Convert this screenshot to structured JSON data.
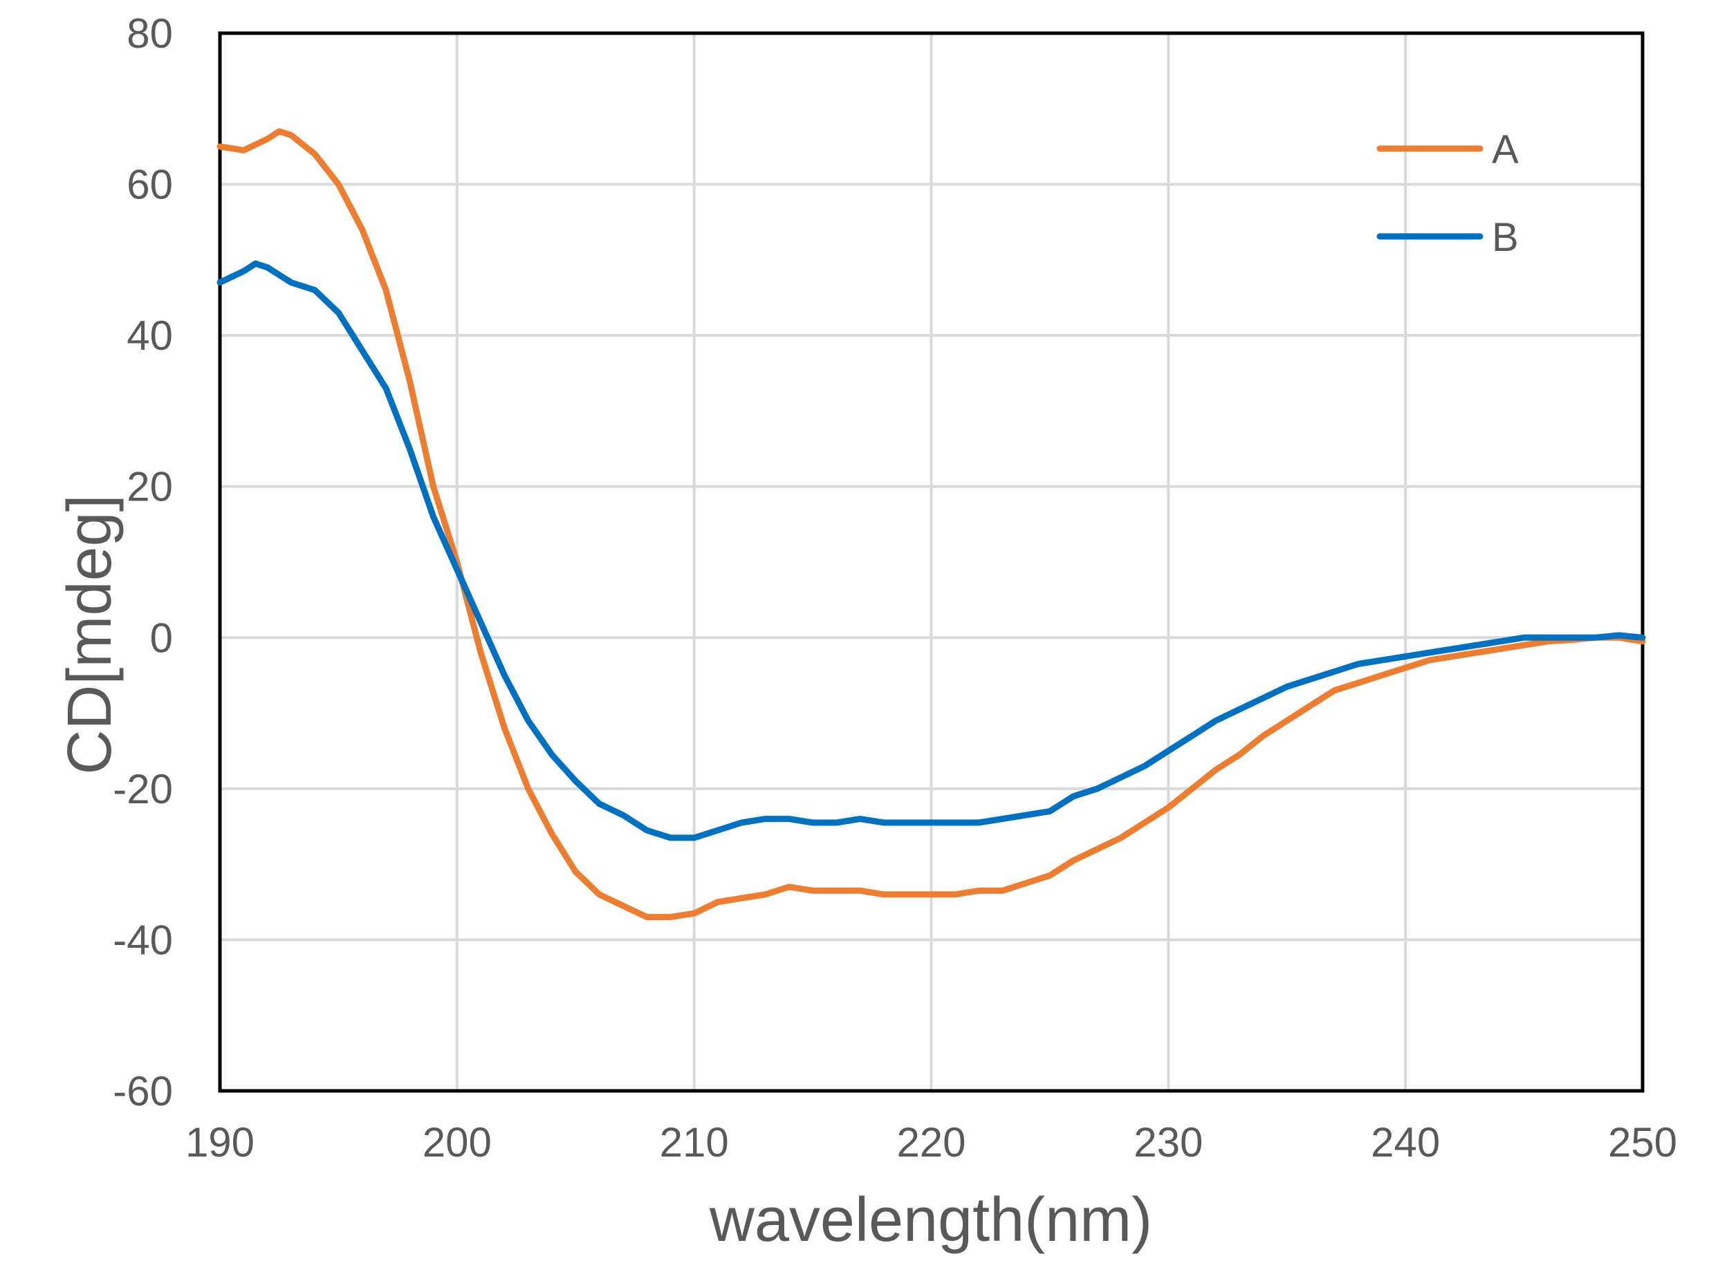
{
  "chart_data": {
    "type": "line",
    "title": "",
    "xlabel": "wavelength(nm)",
    "ylabel": "CD[mdeg]",
    "xlim": [
      190,
      250
    ],
    "ylim": [
      -60,
      80
    ],
    "xticks": [
      190,
      200,
      210,
      220,
      230,
      240,
      250
    ],
    "yticks": [
      -60,
      -40,
      -20,
      0,
      20,
      40,
      60,
      80
    ],
    "grid": true,
    "legend_position": "top-right",
    "series": [
      {
        "name": "A",
        "color": "#ed7d31",
        "x": [
          190,
          191,
          192,
          192.5,
          193,
          194,
          195,
          196,
          197,
          198,
          199,
          200,
          201,
          202,
          203,
          204,
          205,
          206,
          207,
          208,
          209,
          210,
          211,
          212,
          213,
          214,
          215,
          216,
          217,
          218,
          219,
          220,
          221,
          222,
          223,
          224,
          225,
          226,
          227,
          228,
          229,
          230,
          231,
          232,
          233,
          234,
          235,
          236,
          237,
          238,
          239,
          240,
          241,
          242,
          243,
          244,
          245,
          246,
          247,
          248,
          249,
          250
        ],
        "y": [
          65,
          64.5,
          66,
          67,
          66.5,
          64,
          60,
          54,
          46,
          34,
          20,
          10,
          -2,
          -12,
          -20,
          -26,
          -31,
          -34,
          -35.5,
          -37,
          -37,
          -36.5,
          -35,
          -34.5,
          -34,
          -33,
          -33.5,
          -33.5,
          -33.5,
          -34,
          -34,
          -34,
          -34,
          -33.5,
          -33.5,
          -32.5,
          -31.5,
          -29.5,
          -28,
          -26.5,
          -24.5,
          -22.5,
          -20,
          -17.5,
          -15.5,
          -13,
          -11,
          -9,
          -7,
          -6,
          -5,
          -4,
          -3,
          -2.5,
          -2,
          -1.5,
          -1,
          -0.5,
          -0.3,
          0,
          0,
          -0.5
        ]
      },
      {
        "name": "B",
        "color": "#0070c0",
        "x": [
          190,
          191,
          191.5,
          192,
          193,
          194,
          195,
          196,
          197,
          198,
          199,
          200,
          201,
          202,
          203,
          204,
          205,
          206,
          207,
          208,
          209,
          210,
          211,
          212,
          213,
          214,
          215,
          216,
          217,
          218,
          219,
          220,
          221,
          222,
          223,
          224,
          225,
          226,
          227,
          228,
          229,
          230,
          231,
          232,
          233,
          234,
          235,
          236,
          237,
          238,
          239,
          240,
          241,
          242,
          243,
          244,
          245,
          246,
          247,
          248,
          249,
          250
        ],
        "y": [
          47,
          48.5,
          49.5,
          49,
          47,
          46,
          43,
          38,
          33,
          25,
          16,
          9,
          2,
          -5,
          -11,
          -15.5,
          -19,
          -22,
          -23.5,
          -25.5,
          -26.5,
          -26.5,
          -25.5,
          -24.5,
          -24,
          -24,
          -24.5,
          -24.5,
          -24,
          -24.5,
          -24.5,
          -24.5,
          -24.5,
          -24.5,
          -24,
          -23.5,
          -23,
          -21,
          -20,
          -18.5,
          -17,
          -15,
          -13,
          -11,
          -9.5,
          -8,
          -6.5,
          -5.5,
          -4.5,
          -3.5,
          -3,
          -2.5,
          -2,
          -1.5,
          -1,
          -0.5,
          0,
          0,
          0,
          0,
          0.3,
          0
        ]
      }
    ]
  }
}
